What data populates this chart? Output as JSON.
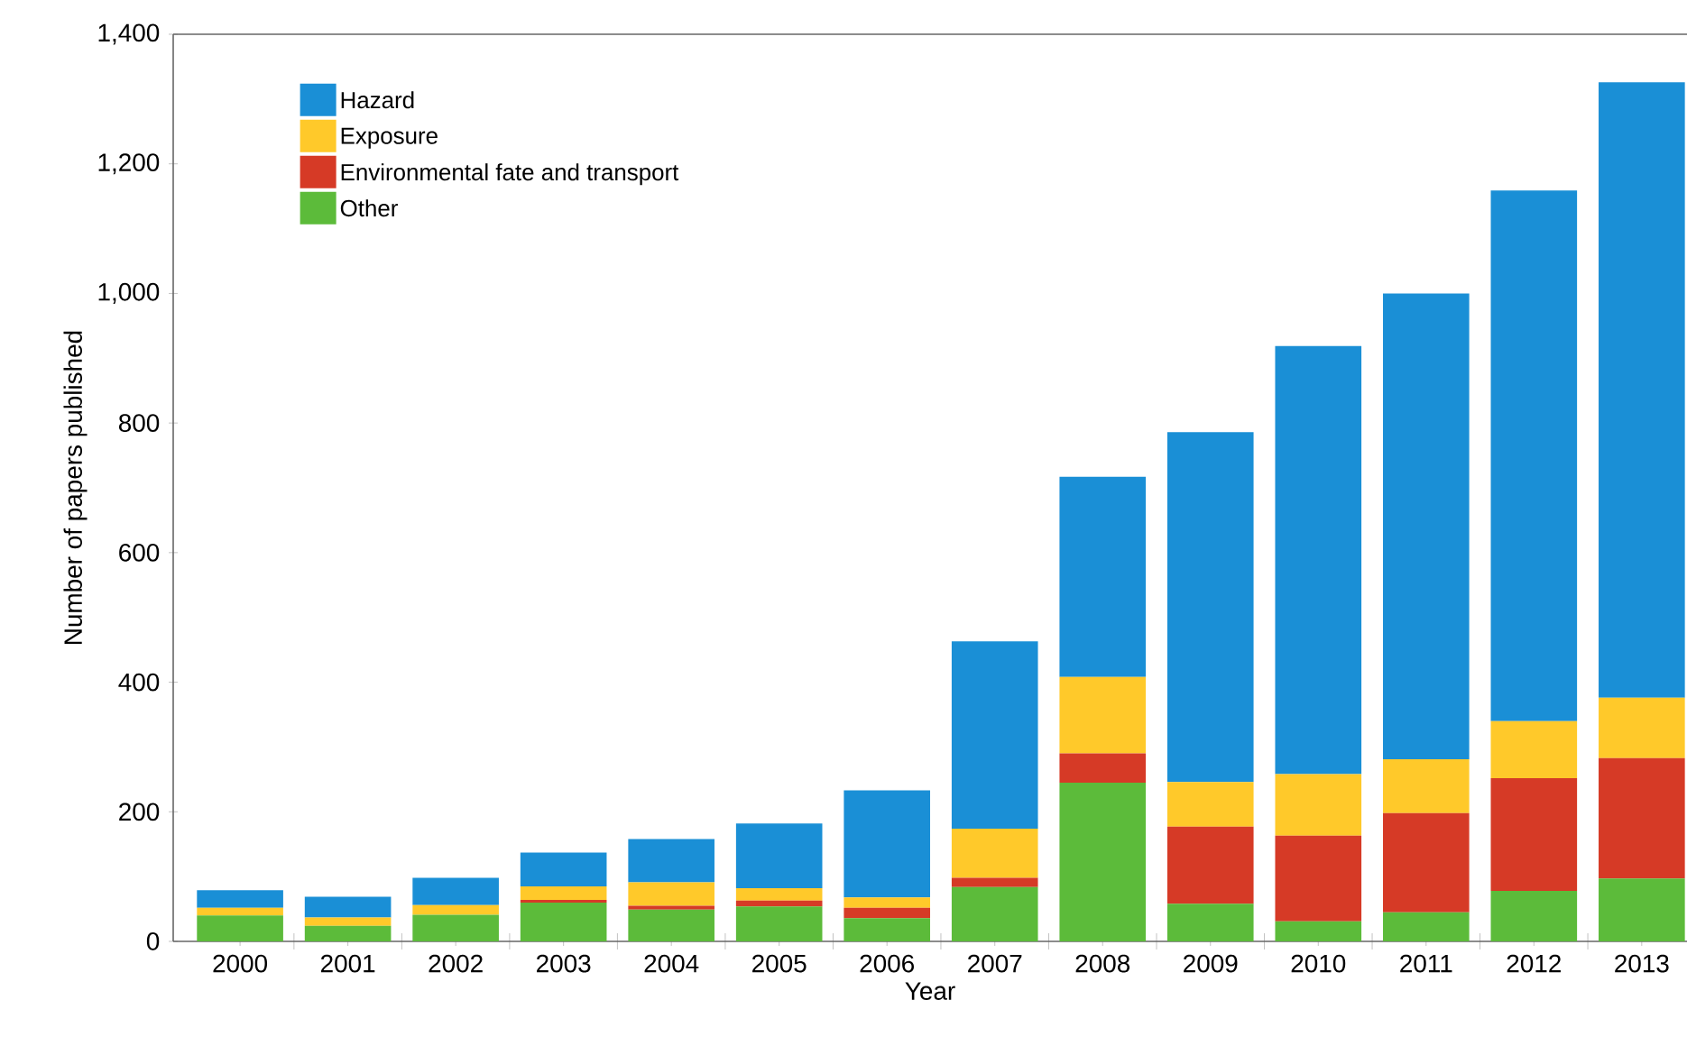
{
  "chart_data": {
    "type": "bar",
    "stacked": true,
    "xlabel": "Year",
    "ylabel": "Number of papers published",
    "categories": [
      "2000",
      "2001",
      "2002",
      "2003",
      "2004",
      "2005",
      "2006",
      "2007",
      "2008",
      "2009",
      "2010",
      "2011",
      "2012",
      "2013"
    ],
    "series": [
      {
        "name": "Other",
        "color": "#5cbb3a",
        "values": [
          40,
          24,
          41,
          60,
          49,
          54,
          36,
          84,
          245,
          58,
          31,
          45,
          78,
          97
        ]
      },
      {
        "name": "Environmental fate and transport",
        "color": "#d63a26",
        "values": [
          0,
          0,
          0,
          4,
          6,
          9,
          16,
          14,
          45,
          119,
          132,
          153,
          174,
          186
        ]
      },
      {
        "name": "Exposure",
        "color": "#ffc92a",
        "values": [
          12,
          13,
          15,
          21,
          36,
          19,
          16,
          76,
          118,
          69,
          95,
          83,
          88,
          93
        ]
      },
      {
        "name": "Hazard",
        "color": "#1a8fd6",
        "values": [
          27,
          32,
          42,
          52,
          67,
          100,
          165,
          289,
          309,
          540,
          661,
          719,
          819,
          950
        ]
      }
    ],
    "ylim": [
      0,
      1400
    ],
    "yticks": [
      0,
      200,
      400,
      600,
      800,
      {
        "value": 1000,
        "label": "1,000"
      },
      {
        "value": 1200,
        "label": "1,200"
      },
      {
        "value": 1400,
        "label": "1,400"
      }
    ],
    "legend": "top left",
    "grid": false
  }
}
